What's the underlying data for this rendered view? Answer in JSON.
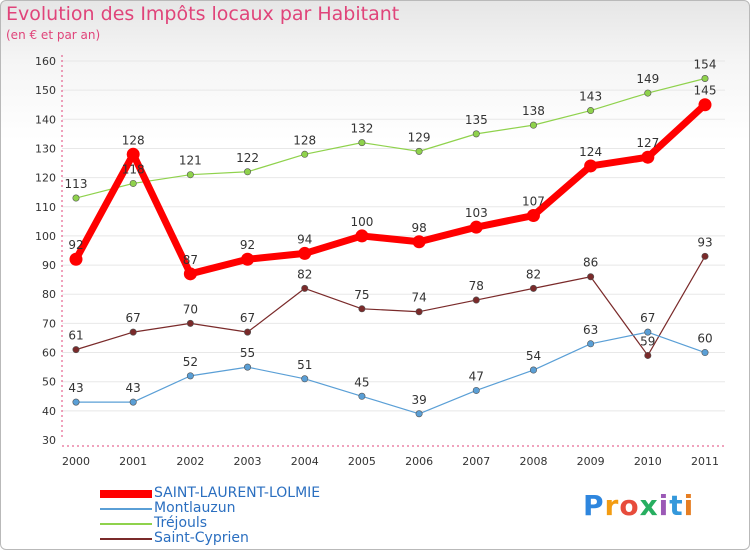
{
  "chart_data": {
    "type": "line",
    "title": "Evolution des Impôts locaux par Habitant",
    "subtitle": "(en € et par an)",
    "xlabel": "",
    "ylabel": "",
    "ylim": [
      30,
      160
    ],
    "yticks": [
      30,
      40,
      50,
      60,
      70,
      80,
      90,
      100,
      110,
      120,
      130,
      140,
      150,
      160
    ],
    "categories": [
      "2000",
      "2001",
      "2002",
      "2003",
      "2004",
      "2005",
      "2006",
      "2007",
      "2008",
      "2009",
      "2010",
      "2011"
    ],
    "series": [
      {
        "name": "SAINT-LAURENT-LOLMIE",
        "color": "#ff0000",
        "values": [
          92,
          128,
          87,
          92,
          94,
          100,
          98,
          103,
          107,
          124,
          127,
          145
        ]
      },
      {
        "name": "Montlauzun",
        "color": "#5a9fd6",
        "values": [
          43,
          43,
          52,
          55,
          51,
          45,
          39,
          47,
          54,
          63,
          67,
          60
        ]
      },
      {
        "name": "Tréjouls",
        "color": "#8fd24c",
        "values": [
          113,
          118,
          121,
          122,
          128,
          132,
          129,
          135,
          138,
          143,
          149,
          154
        ]
      },
      {
        "name": "Saint-Cyprien",
        "color": "#7a2a2a",
        "values": [
          61,
          67,
          70,
          67,
          82,
          75,
          74,
          78,
          82,
          86,
          59,
          93
        ]
      }
    ]
  },
  "logo": {
    "letters": [
      "P",
      "r",
      "o",
      "x",
      "i",
      "t",
      "i"
    ],
    "colors": [
      "#2e86de",
      "#f39c12",
      "#e74c3c",
      "#27ae60",
      "#9b59b6",
      "#3498db",
      "#e67e22"
    ]
  }
}
